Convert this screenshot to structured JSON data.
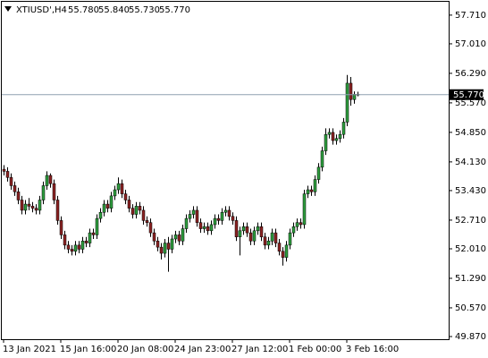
{
  "chart_data": {
    "type": "candlestick",
    "title": "XTIUSD',H4",
    "ohlc_labels": [
      "55.780",
      "55.840",
      "55.730",
      "55.770"
    ],
    "categories": [
      "13 Jan 2021",
      null,
      null,
      null,
      null,
      null,
      null,
      null,
      null,
      null,
      null,
      null,
      null,
      null,
      null,
      null,
      "15 Jan 16:00",
      null,
      null,
      null,
      null,
      null,
      null,
      null,
      null,
      null,
      null,
      null,
      null,
      null,
      null,
      null,
      "20 Jan 08:00",
      null,
      null,
      null,
      null,
      null,
      null,
      null,
      null,
      null,
      null,
      null,
      null,
      null,
      null,
      null,
      "24 Jan 23:00",
      null,
      null,
      null,
      null,
      null,
      null,
      null,
      null,
      null,
      null,
      null,
      null,
      null,
      null,
      null,
      "27 Jan 12:00",
      null,
      null,
      null,
      null,
      null,
      null,
      null,
      null,
      null,
      null,
      null,
      null,
      null,
      null,
      null,
      "1 Feb 00:00",
      null,
      null,
      null,
      null,
      null,
      null,
      null,
      null,
      null,
      null,
      null,
      null,
      null,
      null,
      null,
      "3 Feb 16:00",
      null,
      null,
      null
    ],
    "open": [
      53.95,
      53.9,
      53.75,
      53.55,
      53.4,
      53.2,
      52.95,
      53.1,
      53.05,
      53.0,
      52.95,
      53.2,
      53.55,
      53.8,
      53.6,
      53.2,
      52.7,
      52.35,
      52.1,
      52.0,
      51.95,
      52.1,
      52.0,
      52.2,
      52.15,
      52.4,
      52.35,
      52.75,
      52.9,
      53.1,
      53.0,
      53.3,
      53.45,
      53.6,
      53.35,
      53.2,
      53.0,
      52.85,
      53.05,
      52.95,
      52.7,
      52.65,
      52.4,
      52.2,
      52.05,
      51.9,
      52.15,
      52.0,
      52.25,
      52.35,
      52.2,
      52.5,
      52.75,
      52.85,
      52.95,
      52.65,
      52.5,
      52.55,
      52.45,
      52.6,
      52.75,
      52.7,
      52.9,
      52.95,
      52.8,
      52.7,
      52.3,
      52.45,
      52.55,
      52.4,
      52.2,
      52.45,
      52.55,
      52.3,
      52.1,
      52.2,
      52.4,
      52.15,
      51.95,
      51.8,
      52.1,
      52.4,
      52.55,
      52.65,
      52.6,
      53.35,
      53.45,
      53.4,
      53.7,
      54.0,
      54.4,
      54.8,
      54.85,
      54.65,
      54.7,
      54.8,
      55.1,
      56.05,
      55.65,
      55.78
    ],
    "high": [
      54.05,
      54.0,
      53.85,
      53.65,
      53.5,
      53.3,
      53.2,
      53.25,
      53.15,
      53.1,
      53.3,
      53.65,
      53.9,
      53.85,
      53.7,
      53.3,
      52.8,
      52.45,
      52.2,
      52.1,
      52.2,
      52.2,
      52.3,
      52.3,
      52.5,
      52.5,
      52.85,
      53.0,
      53.2,
      53.2,
      53.4,
      53.55,
      53.75,
      53.7,
      53.45,
      53.3,
      53.1,
      53.15,
      53.15,
      53.05,
      52.8,
      52.75,
      52.5,
      52.3,
      52.15,
      52.25,
      52.3,
      52.35,
      52.45,
      52.45,
      52.6,
      52.85,
      52.95,
      53.05,
      53.05,
      52.75,
      52.65,
      52.65,
      52.7,
      52.85,
      52.85,
      53.0,
      53.05,
      53.05,
      52.9,
      52.8,
      52.55,
      52.65,
      52.65,
      52.5,
      52.55,
      52.65,
      52.65,
      52.4,
      52.3,
      52.5,
      52.5,
      52.25,
      52.05,
      52.2,
      52.5,
      52.65,
      52.75,
      52.75,
      53.45,
      53.55,
      53.55,
      53.8,
      54.1,
      54.5,
      54.95,
      54.95,
      54.95,
      54.8,
      54.9,
      55.2,
      56.25,
      56.2,
      55.85,
      55.84
    ],
    "low": [
      53.8,
      53.65,
      53.45,
      53.3,
      53.1,
      52.85,
      52.85,
      52.95,
      52.9,
      52.85,
      52.85,
      53.1,
      53.45,
      53.5,
      53.1,
      52.6,
      52.25,
      52.0,
      51.9,
      51.85,
      51.85,
      51.9,
      51.9,
      52.05,
      52.05,
      52.25,
      52.25,
      52.65,
      52.8,
      52.9,
      52.9,
      53.2,
      53.35,
      53.25,
      53.1,
      52.9,
      52.75,
      52.75,
      52.85,
      52.6,
      52.55,
      52.3,
      52.1,
      51.95,
      51.75,
      51.8,
      51.45,
      51.9,
      52.15,
      52.1,
      52.1,
      52.4,
      52.65,
      52.75,
      52.55,
      52.4,
      52.4,
      52.35,
      52.35,
      52.5,
      52.6,
      52.6,
      52.8,
      52.7,
      52.6,
      52.2,
      51.85,
      52.35,
      52.3,
      52.1,
      52.1,
      52.35,
      52.2,
      52.0,
      52.0,
      52.1,
      52.05,
      51.85,
      51.6,
      51.7,
      52.0,
      52.3,
      52.45,
      52.5,
      52.5,
      53.25,
      53.3,
      53.3,
      53.6,
      53.9,
      54.3,
      54.7,
      54.55,
      54.55,
      54.6,
      54.7,
      55.0,
      55.5,
      55.55,
      55.73
    ],
    "close": [
      53.9,
      53.75,
      53.55,
      53.4,
      53.2,
      52.95,
      53.1,
      53.05,
      53.0,
      52.95,
      53.2,
      53.55,
      53.8,
      53.6,
      53.2,
      52.7,
      52.35,
      52.1,
      52.0,
      51.95,
      52.1,
      52.0,
      52.2,
      52.15,
      52.4,
      52.35,
      52.75,
      52.9,
      53.1,
      53.0,
      53.3,
      53.45,
      53.6,
      53.35,
      53.2,
      53.0,
      52.85,
      53.05,
      52.95,
      52.7,
      52.65,
      52.4,
      52.2,
      52.05,
      51.9,
      52.15,
      52.0,
      52.25,
      52.35,
      52.2,
      52.5,
      52.75,
      52.85,
      52.95,
      52.65,
      52.5,
      52.55,
      52.45,
      52.6,
      52.75,
      52.7,
      52.9,
      52.95,
      52.8,
      52.7,
      52.3,
      52.45,
      52.55,
      52.4,
      52.2,
      52.45,
      52.55,
      52.3,
      52.1,
      52.2,
      52.4,
      52.15,
      51.95,
      51.8,
      52.1,
      52.4,
      52.55,
      52.65,
      52.6,
      53.35,
      53.45,
      53.4,
      53.7,
      54.0,
      54.4,
      54.8,
      54.85,
      54.65,
      54.7,
      54.8,
      55.1,
      56.05,
      55.65,
      55.78,
      55.77
    ],
    "up_color": "#2e9e3e",
    "down_color": "#8b2222",
    "wick_color": "#000000",
    "ylim": [
      49.805,
      58.035
    ],
    "yticks": [
      {
        "value": 57.71,
        "label": "57.710"
      },
      {
        "value": 57.01,
        "label": "57.010"
      },
      {
        "value": 56.29,
        "label": "56.290"
      },
      {
        "value": 55.57,
        "label": "55.570"
      },
      {
        "value": 54.85,
        "label": "54.850"
      },
      {
        "value": 54.13,
        "label": "54.130"
      },
      {
        "value": 53.43,
        "label": "53.430"
      },
      {
        "value": 52.71,
        "label": "52.710"
      },
      {
        "value": 52.01,
        "label": "52.010"
      },
      {
        "value": 51.29,
        "label": "51.290"
      },
      {
        "value": 50.57,
        "label": "50.570"
      },
      {
        "value": 49.87,
        "label": "49.870"
      }
    ],
    "current_price": {
      "value": 55.77,
      "label": "55.770"
    },
    "current_price_color": "#8fa0b0"
  }
}
